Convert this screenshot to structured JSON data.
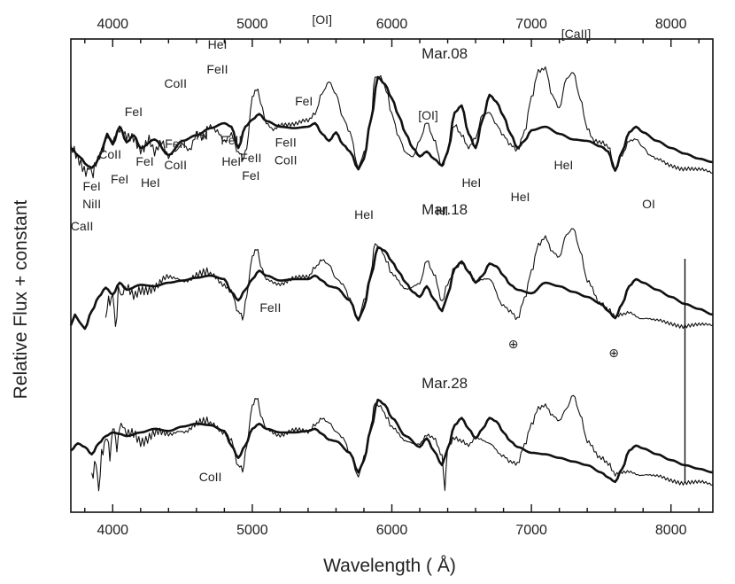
{
  "chart_data": {
    "type": "line",
    "xlabel": "Wavelength ( Å)",
    "ylabel": "Relative Flux + constant",
    "xlim": [
      3700,
      8300
    ],
    "xticks": [
      4000,
      5000,
      6000,
      7000,
      8000
    ],
    "grid": false,
    "series": [
      {
        "epoch": "Mar.08",
        "style": "observed",
        "x": [
          3700,
          3760,
          3820,
          3850,
          3880,
          3920,
          3960,
          4000,
          4050,
          4100,
          4150,
          4200,
          4260,
          4300,
          4350,
          4400,
          4450,
          4500,
          4550,
          4600,
          4650,
          4700,
          4750,
          4800,
          4850,
          4900,
          4930,
          4960,
          5000,
          5030,
          5060,
          5100,
          5150,
          5200,
          5300,
          5400,
          5450,
          5500,
          5550,
          5600,
          5650,
          5700,
          5760,
          5800,
          5850,
          5880,
          5920,
          5960,
          6000,
          6050,
          6100,
          6150,
          6200,
          6250,
          6300,
          6360,
          6400,
          6450,
          6500,
          6550,
          6600,
          6650,
          6700,
          6750,
          6800,
          6850,
          6900,
          6950,
          7000,
          7050,
          7100,
          7150,
          7200,
          7250,
          7300,
          7350,
          7400,
          7450,
          7500,
          7550,
          7600,
          7650,
          7700,
          7750,
          7800,
          7850,
          7900,
          8000,
          8100,
          8200,
          8300
        ],
        "y": [
          0.55,
          0.42,
          0.3,
          0.27,
          0.33,
          0.48,
          0.72,
          0.68,
          0.8,
          0.72,
          0.75,
          0.63,
          0.7,
          0.54,
          0.64,
          0.42,
          0.55,
          0.7,
          0.63,
          0.82,
          0.72,
          0.88,
          0.82,
          0.7,
          0.82,
          0.55,
          0.45,
          0.58,
          1.3,
          1.45,
          1.25,
          0.95,
          0.88,
          0.95,
          0.92,
          0.98,
          1.1,
          1.4,
          1.55,
          1.35,
          1.0,
          0.8,
          0.35,
          0.55,
          1.0,
          1.6,
          1.6,
          1.4,
          1.05,
          0.75,
          0.55,
          0.5,
          0.72,
          0.95,
          0.7,
          0.35,
          0.55,
          0.95,
          0.8,
          0.6,
          0.72,
          1.05,
          1.1,
          0.95,
          0.8,
          0.65,
          0.55,
          0.8,
          1.3,
          1.7,
          1.75,
          1.35,
          1.15,
          1.55,
          1.65,
          1.3,
          0.9,
          0.72,
          0.68,
          0.6,
          0.28,
          0.5,
          0.72,
          0.75,
          0.62,
          0.48,
          0.42,
          0.36,
          0.32,
          0.28,
          0.25
        ]
      },
      {
        "epoch": "Mar.08",
        "style": "model",
        "x": [
          3700,
          3760,
          3820,
          3850,
          3880,
          3920,
          3960,
          4000,
          4050,
          4100,
          4150,
          4200,
          4300,
          4400,
          4500,
          4600,
          4700,
          4800,
          4850,
          4900,
          4950,
          5000,
          5050,
          5100,
          5200,
          5300,
          5400,
          5450,
          5500,
          5550,
          5600,
          5650,
          5700,
          5760,
          5800,
          5850,
          5900,
          5950,
          6000,
          6050,
          6100,
          6150,
          6200,
          6250,
          6300,
          6360,
          6400,
          6450,
          6500,
          6550,
          6600,
          6650,
          6700,
          6750,
          6800,
          6850,
          6900,
          6950,
          7000,
          7100,
          7200,
          7300,
          7400,
          7500,
          7550,
          7600,
          7650,
          7700,
          7750,
          7800,
          7900,
          8000,
          8100,
          8200,
          8300
        ],
        "y": [
          0.6,
          0.48,
          0.35,
          0.32,
          0.38,
          0.55,
          0.8,
          0.65,
          0.9,
          0.68,
          0.78,
          0.6,
          0.72,
          0.5,
          0.7,
          0.78,
          0.88,
          0.95,
          0.9,
          0.6,
          0.9,
          1.0,
          1.08,
          0.98,
          0.9,
          0.88,
          0.9,
          0.95,
          0.8,
          0.7,
          0.82,
          0.65,
          0.55,
          0.3,
          0.45,
          1.0,
          1.6,
          1.5,
          1.3,
          1.05,
          0.8,
          0.6,
          0.48,
          0.55,
          0.45,
          0.35,
          0.55,
          1.1,
          1.2,
          0.8,
          0.6,
          1.0,
          1.35,
          1.25,
          1.05,
          0.8,
          0.6,
          0.7,
          0.85,
          0.9,
          0.8,
          0.72,
          0.7,
          0.62,
          0.55,
          0.28,
          0.55,
          0.82,
          0.9,
          0.82,
          0.7,
          0.6,
          0.52,
          0.45,
          0.4
        ]
      },
      {
        "epoch": "Mar.18",
        "style": "observed",
        "x": [
          3950,
          3980,
          4000,
          4020,
          4040,
          4060,
          4100,
          4150,
          4200,
          4300,
          4400,
          4500,
          4600,
          4700,
          4800,
          4850,
          4900,
          4930,
          4960,
          5000,
          5030,
          5060,
          5100,
          5200,
          5300,
          5400,
          5450,
          5500,
          5550,
          5600,
          5650,
          5700,
          5760,
          5800,
          5850,
          5880,
          5920,
          5960,
          6000,
          6100,
          6200,
          6250,
          6300,
          6360,
          6400,
          6450,
          6500,
          6550,
          6600,
          6700,
          6800,
          6850,
          6900,
          6950,
          7000,
          7050,
          7100,
          7150,
          7200,
          7250,
          7300,
          7350,
          7400,
          7500,
          7550,
          7600,
          7650,
          7700,
          7800,
          7900,
          8000,
          8100,
          8200,
          8300
        ],
        "y": [
          0.5,
          0.72,
          0.78,
          0.3,
          0.85,
          0.75,
          0.85,
          0.78,
          0.9,
          0.88,
          0.98,
          1.02,
          1.08,
          1.05,
          0.92,
          0.85,
          0.55,
          0.45,
          0.75,
          1.3,
          1.45,
          1.2,
          1.0,
          0.95,
          1.0,
          1.02,
          1.18,
          1.3,
          1.22,
          1.0,
          0.9,
          0.7,
          0.45,
          0.72,
          1.1,
          1.5,
          1.42,
          1.25,
          1.05,
          0.88,
          0.95,
          1.25,
          1.05,
          0.7,
          0.95,
          1.18,
          1.25,
          1.1,
          0.95,
          1.0,
          0.65,
          0.55,
          0.42,
          0.7,
          1.1,
          1.5,
          1.62,
          1.4,
          1.3,
          1.6,
          1.7,
          1.4,
          1.0,
          0.65,
          0.55,
          0.45,
          0.5,
          0.55,
          0.45,
          0.4,
          0.38,
          0.35,
          0.34,
          0.35
        ]
      },
      {
        "epoch": "Mar.18",
        "style": "model",
        "x": [
          3700,
          3730,
          3760,
          3800,
          3850,
          3900,
          3950,
          4000,
          4050,
          4100,
          4200,
          4300,
          4400,
          4500,
          4600,
          4700,
          4800,
          4850,
          4900,
          4950,
          5000,
          5050,
          5100,
          5200,
          5300,
          5400,
          5450,
          5500,
          5550,
          5600,
          5700,
          5760,
          5800,
          5850,
          5900,
          5950,
          6000,
          6050,
          6100,
          6150,
          6200,
          6250,
          6300,
          6360,
          6400,
          6450,
          6500,
          6550,
          6600,
          6650,
          6700,
          6750,
          6800,
          6850,
          6900,
          7000,
          7100,
          7200,
          7300,
          7400,
          7500,
          7550,
          7600,
          7650,
          7700,
          7750,
          7800,
          7900,
          8000,
          8100,
          8200,
          8300
        ],
        "y": [
          0.35,
          0.5,
          0.4,
          0.3,
          0.55,
          0.75,
          0.88,
          0.78,
          0.95,
          0.85,
          0.92,
          0.9,
          0.95,
          0.98,
          1.02,
          1.05,
          1.0,
          0.82,
          0.7,
          0.85,
          1.0,
          1.12,
          1.05,
          0.98,
          1.0,
          1.0,
          1.05,
          0.98,
          0.9,
          0.88,
          0.7,
          0.42,
          0.6,
          1.05,
          1.45,
          1.4,
          1.25,
          1.1,
          0.95,
          0.82,
          0.75,
          0.9,
          0.72,
          0.55,
          0.78,
          1.15,
          1.25,
          1.1,
          0.95,
          1.05,
          1.22,
          1.18,
          1.05,
          0.92,
          0.85,
          0.8,
          0.95,
          0.9,
          0.82,
          0.75,
          0.65,
          0.55,
          0.45,
          0.65,
          0.9,
          1.0,
          0.95,
          0.85,
          0.75,
          0.65,
          0.58,
          0.5
        ]
      },
      {
        "epoch": "Mar.28",
        "style": "observed",
        "x": [
          3850,
          3880,
          3900,
          3920,
          3950,
          3980,
          4000,
          4030,
          4060,
          4100,
          4150,
          4200,
          4300,
          4400,
          4500,
          4600,
          4700,
          4800,
          4850,
          4900,
          4930,
          4960,
          5000,
          5030,
          5060,
          5100,
          5200,
          5300,
          5400,
          5450,
          5500,
          5550,
          5600,
          5650,
          5700,
          5760,
          5800,
          5850,
          5880,
          5920,
          5960,
          6000,
          6100,
          6200,
          6250,
          6300,
          6360,
          6380,
          6400,
          6450,
          6500,
          6550,
          6600,
          6700,
          6800,
          6850,
          6900,
          6950,
          7000,
          7050,
          7100,
          7150,
          7200,
          7250,
          7300,
          7350,
          7400,
          7500,
          7550,
          7600,
          7650,
          7700,
          7800,
          7900,
          8000,
          8100,
          8200,
          8300
        ],
        "y": [
          0.45,
          0.55,
          0.25,
          0.65,
          0.95,
          0.7,
          1.05,
          0.85,
          1.1,
          0.95,
          1.0,
          0.92,
          1.0,
          0.92,
          1.05,
          1.15,
          1.1,
          1.0,
          0.92,
          0.55,
          0.48,
          0.8,
          1.35,
          1.5,
          1.25,
          1.05,
          0.98,
          1.02,
          1.0,
          1.12,
          1.22,
          1.15,
          1.0,
          0.9,
          0.7,
          0.42,
          0.68,
          1.1,
          1.4,
          1.35,
          1.2,
          1.05,
          0.9,
          0.85,
          0.95,
          0.9,
          0.7,
          0.2,
          0.82,
          0.95,
          0.9,
          0.82,
          0.9,
          0.85,
          0.7,
          0.6,
          0.55,
          0.8,
          1.1,
          1.35,
          1.4,
          1.25,
          1.15,
          1.3,
          1.5,
          1.25,
          0.9,
          0.65,
          0.55,
          0.4,
          0.45,
          0.48,
          0.42,
          0.38,
          0.35,
          0.32,
          0.3,
          0.28
        ]
      },
      {
        "epoch": "Mar.28",
        "style": "model",
        "x": [
          3700,
          3750,
          3800,
          3850,
          3900,
          3950,
          4000,
          4050,
          4100,
          4200,
          4300,
          4400,
          4500,
          4600,
          4700,
          4800,
          4850,
          4900,
          4950,
          5000,
          5050,
          5100,
          5200,
          5300,
          5400,
          5450,
          5500,
          5550,
          5600,
          5700,
          5760,
          5800,
          5850,
          5900,
          5950,
          6000,
          6100,
          6200,
          6250,
          6300,
          6360,
          6400,
          6450,
          6500,
          6550,
          6600,
          6650,
          6700,
          6750,
          6800,
          6850,
          6900,
          7000,
          7100,
          7200,
          7300,
          7400,
          7500,
          7550,
          7600,
          7650,
          7700,
          7750,
          7800,
          7900,
          8000,
          8100,
          8200,
          8300
        ],
        "y": [
          0.75,
          0.85,
          0.8,
          0.7,
          0.85,
          0.95,
          1.0,
          0.98,
          0.95,
          1.0,
          1.05,
          1.02,
          1.08,
          1.12,
          1.1,
          1.02,
          0.82,
          0.65,
          0.82,
          1.05,
          1.12,
          1.05,
          1.0,
          1.0,
          1.02,
          1.05,
          0.98,
          0.9,
          0.88,
          0.72,
          0.45,
          0.62,
          1.05,
          1.45,
          1.38,
          1.2,
          0.95,
          0.8,
          0.92,
          0.75,
          0.55,
          0.78,
          1.1,
          1.2,
          1.05,
          0.92,
          1.05,
          1.2,
          1.15,
          1.0,
          0.88,
          0.8,
          0.72,
          0.7,
          0.65,
          0.6,
          0.55,
          0.45,
          0.38,
          0.32,
          0.5,
          0.75,
          0.82,
          0.78,
          0.7,
          0.62,
          0.55,
          0.5,
          0.45
        ]
      }
    ],
    "spike": {
      "x": 8100,
      "epochs": [
        "Mar.18",
        "Mar.28"
      ]
    }
  },
  "epoch_labels": [
    {
      "text": "Mar.08",
      "x": 6150,
      "y": 1.8
    },
    {
      "text": "Mar.18",
      "x": 6150,
      "y": 1.85
    },
    {
      "text": "Mar.28",
      "x": 6150,
      "y": 1.55
    }
  ],
  "line_labels": [
    {
      "text": "[OI]",
      "x": 5500,
      "y": 2.35
    },
    {
      "text": "HeI",
      "x": 4750,
      "y": 2.0
    },
    {
      "text": "FeII",
      "x": 4750,
      "y": 1.65
    },
    {
      "text": "CoII",
      "x": 4450,
      "y": 1.45
    },
    {
      "text": "FeI",
      "x": 4150,
      "y": 1.05
    },
    {
      "text": "FeI",
      "x": 5370,
      "y": 1.2
    },
    {
      "text": "HI",
      "x": 4640,
      "y": 0.72
    },
    {
      "text": "CoII",
      "x": 3980,
      "y": 0.45
    },
    {
      "text": "FeI",
      "x": 4230,
      "y": 0.35
    },
    {
      "text": "FeI",
      "x": 4050,
      "y": 0.1
    },
    {
      "text": "HeI",
      "x": 4270,
      "y": 0.05
    },
    {
      "text": "FeI",
      "x": 3850,
      "y": 0.0
    },
    {
      "text": "NiII",
      "x": 3850,
      "y": -0.25
    },
    {
      "text": "CaII",
      "x": 3780,
      "y": -0.9
    },
    {
      "text": "FeII",
      "x": 4990,
      "y": 0.4
    },
    {
      "text": "FeI",
      "x": 4990,
      "y": 0.15
    },
    {
      "text": "FeII",
      "x": 5240,
      "y": 0.62
    },
    {
      "text": "CoII",
      "x": 5240,
      "y": 0.37
    },
    {
      "text": "[OI]",
      "x": 6260,
      "y": 1.0
    },
    {
      "text": "[CaII]",
      "x": 7320,
      "y": 2.15
    },
    {
      "text": "HeI",
      "x": 5800,
      "y": -0.4
    },
    {
      "text": "HI",
      "x": 6360,
      "y": -0.35
    },
    {
      "text": "HeI",
      "x": 6570,
      "y": 0.05
    },
    {
      "text": "HeI",
      "x": 6920,
      "y": -0.15
    },
    {
      "text": "HeI",
      "x": 7230,
      "y": 0.3
    },
    {
      "text": "OI",
      "x": 7840,
      "y": -0.25
    },
    {
      "text": "FeII",
      "x": 4450,
      "y": 2.1
    },
    {
      "text": "CoII",
      "x": 4450,
      "y": 1.8
    },
    {
      "text": "FeII",
      "x": 4850,
      "y": 2.15
    },
    {
      "text": "HeI",
      "x": 4850,
      "y": 1.85
    },
    {
      "text": "FeII",
      "x": 5130,
      "y": 0.15
    },
    {
      "text": "CoII",
      "x": 4700,
      "y": 0.35
    }
  ],
  "earth_symbols": [
    {
      "text": "⊕",
      "x": 6870
    },
    {
      "text": "⊕",
      "x": 7590
    }
  ]
}
